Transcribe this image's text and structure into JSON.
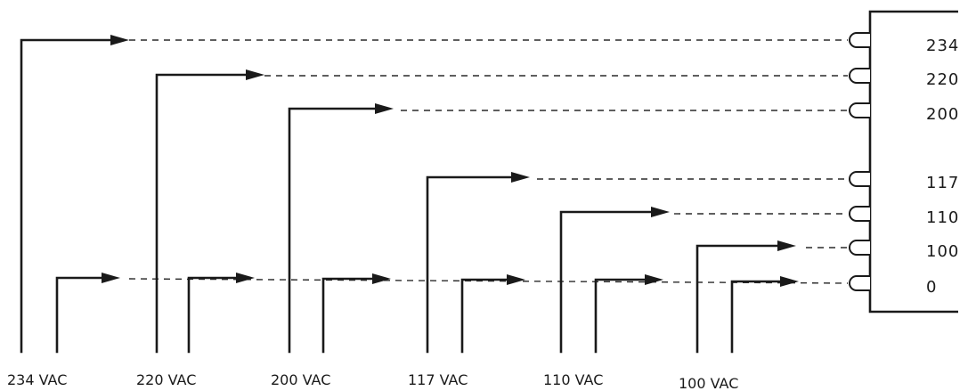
{
  "taps": [
    "234",
    "220",
    "200",
    "117",
    "110",
    "100",
    "0"
  ],
  "sources": [
    "234 VAC",
    "220 VAC",
    "200 VAC",
    "117 VAC",
    "110 VAC",
    "100 VAC"
  ]
}
